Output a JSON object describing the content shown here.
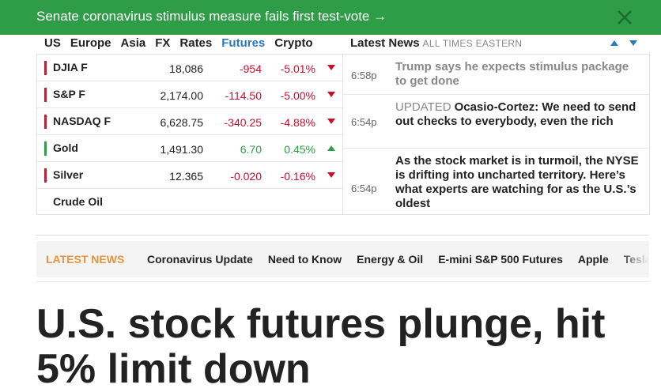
{
  "banner": {
    "text": "Senate coronavirus stimulus measure fails first test-vote →"
  },
  "market": {
    "tabs": [
      "US",
      "Europe",
      "Asia",
      "FX",
      "Rates",
      "Futures",
      "Crypto"
    ],
    "active_tab": 5,
    "rows": [
      {
        "name": "DJIA F",
        "price": "18,086",
        "change": "-954",
        "pct": "-5.01%"
      },
      {
        "name": "S&P F",
        "price": "2,174.00",
        "change": "-114.50",
        "pct": "-5.00%"
      },
      {
        "name": "NASDAQ F",
        "price": "6,628.75",
        "change": "-340.25",
        "pct": "-4.88%"
      },
      {
        "name": "Gold",
        "price": "1,491.30",
        "change": "6.70",
        "pct": "0.45%"
      },
      {
        "name": "Silver",
        "price": "12.365",
        "change": "-0.020",
        "pct": "-0.16%"
      },
      {
        "name": "Crude Oil"
      }
    ]
  },
  "news": {
    "title": "Latest News",
    "subtitle": "ALL TIMES EASTERN",
    "items": [
      {
        "time": "6:58p",
        "headline": "Trump says he expects stimulus package to get done"
      },
      {
        "time": "6:54p",
        "tag": "UPDATED",
        "headline": "Ocasio-Cortez: We need to send out checks to everybody, even the rich"
      },
      {
        "time": "6:54p",
        "headline": "As the stock market is in turmoil, the NYSE is drifting into uncharted territory. Here’s what experts are watching for as the U.S.’s oldest"
      }
    ]
  },
  "nav": {
    "label": "LATEST NEWS",
    "items": [
      "Coronavirus Update",
      "Need to Know",
      "Energy & Oil",
      "E-mini S&P 500 Futures",
      "Apple",
      "Tesla"
    ]
  },
  "article": {
    "headline": "U.S. stock futures plunge, hit 5% limit down"
  }
}
